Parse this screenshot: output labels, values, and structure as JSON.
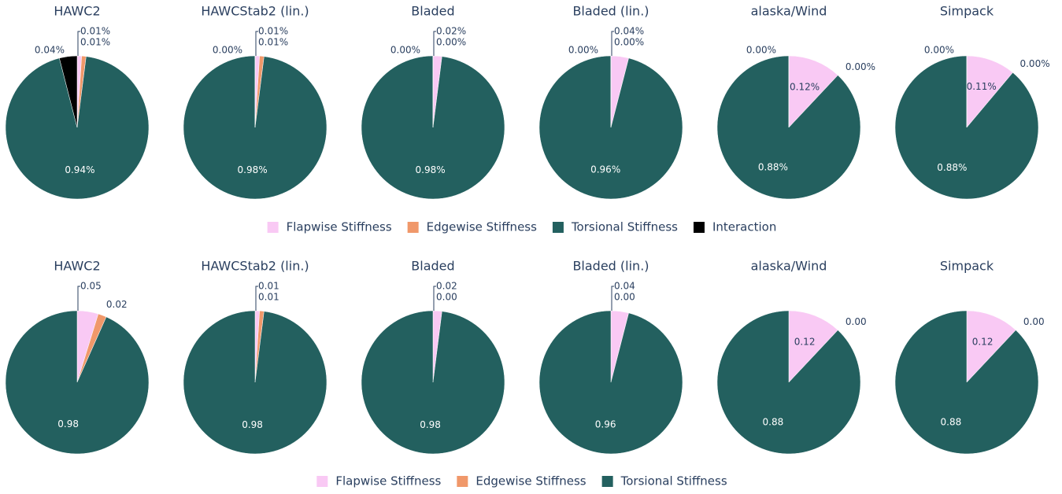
{
  "chart_data": [
    {
      "type": "pie",
      "title": "HAWC2",
      "categories": [
        "Flapwise Stiffness",
        "Edgewise Stiffness",
        "Torsional Stiffness",
        "Interaction"
      ],
      "colors": [
        "#f9c9f4",
        "#f0986a",
        "#23605f",
        "#000000"
      ],
      "values": [
        0.01,
        0.01,
        0.94,
        0.04
      ],
      "value_labels": [
        "0.01%",
        "0.01%",
        "0.94%",
        "0.04%"
      ]
    },
    {
      "type": "pie",
      "title": "HAWCStab2 (lin.)",
      "categories": [
        "Flapwise Stiffness",
        "Edgewise Stiffness",
        "Torsional Stiffness",
        "Interaction"
      ],
      "colors": [
        "#f9c9f4",
        "#f0986a",
        "#23605f",
        "#000000"
      ],
      "values": [
        0.01,
        0.01,
        0.98,
        0.0
      ],
      "value_labels": [
        "0.01%",
        "0.01%",
        "0.98%",
        "0.00%"
      ]
    },
    {
      "type": "pie",
      "title": "Bladed",
      "categories": [
        "Flapwise Stiffness",
        "Edgewise Stiffness",
        "Torsional Stiffness",
        "Interaction"
      ],
      "colors": [
        "#f9c9f4",
        "#f0986a",
        "#23605f",
        "#000000"
      ],
      "values": [
        0.02,
        0.0,
        0.98,
        0.0
      ],
      "value_labels": [
        "0.02%",
        "0.00%",
        "0.98%",
        "0.00%"
      ]
    },
    {
      "type": "pie",
      "title": "Bladed (lin.)",
      "categories": [
        "Flapwise Stiffness",
        "Edgewise Stiffness",
        "Torsional Stiffness",
        "Interaction"
      ],
      "colors": [
        "#f9c9f4",
        "#f0986a",
        "#23605f",
        "#000000"
      ],
      "values": [
        0.04,
        0.0,
        0.96,
        0.0
      ],
      "value_labels": [
        "0.04%",
        "0.00%",
        "0.96%",
        "0.00%"
      ]
    },
    {
      "type": "pie",
      "title": "alaska/Wind",
      "categories": [
        "Flapwise Stiffness",
        "Edgewise Stiffness",
        "Torsional Stiffness",
        "Interaction"
      ],
      "colors": [
        "#f9c9f4",
        "#f0986a",
        "#23605f",
        "#000000"
      ],
      "values": [
        0.12,
        0.0,
        0.88,
        0.0
      ],
      "value_labels": [
        "0.12%",
        "0.00%",
        "0.88%",
        "0.00%"
      ]
    },
    {
      "type": "pie",
      "title": "Simpack",
      "categories": [
        "Flapwise Stiffness",
        "Edgewise Stiffness",
        "Torsional Stiffness",
        "Interaction"
      ],
      "colors": [
        "#f9c9f4",
        "#f0986a",
        "#23605f",
        "#000000"
      ],
      "values": [
        0.11,
        0.0,
        0.88,
        0.0
      ],
      "value_labels": [
        "0.11%",
        "0.00%",
        "0.88%",
        "0.00%"
      ]
    },
    {
      "type": "pie",
      "title": "HAWC2",
      "categories": [
        "Flapwise Stiffness",
        "Edgewise Stiffness",
        "Torsional Stiffness"
      ],
      "colors": [
        "#f9c9f4",
        "#f0986a",
        "#23605f"
      ],
      "values": [
        0.05,
        0.02,
        0.98
      ],
      "value_labels": [
        "0.05",
        "0.02",
        "0.98"
      ]
    },
    {
      "type": "pie",
      "title": "HAWCStab2 (lin.)",
      "categories": [
        "Flapwise Stiffness",
        "Edgewise Stiffness",
        "Torsional Stiffness"
      ],
      "colors": [
        "#f9c9f4",
        "#f0986a",
        "#23605f"
      ],
      "values": [
        0.01,
        0.01,
        0.98
      ],
      "value_labels": [
        "0.01",
        "0.01",
        "0.98"
      ]
    },
    {
      "type": "pie",
      "title": "Bladed",
      "categories": [
        "Flapwise Stiffness",
        "Edgewise Stiffness",
        "Torsional Stiffness"
      ],
      "colors": [
        "#f9c9f4",
        "#f0986a",
        "#23605f"
      ],
      "values": [
        0.02,
        0.0,
        0.98
      ],
      "value_labels": [
        "0.02",
        "0.00",
        "0.98"
      ]
    },
    {
      "type": "pie",
      "title": "Bladed (lin.)",
      "categories": [
        "Flapwise Stiffness",
        "Edgewise Stiffness",
        "Torsional Stiffness"
      ],
      "colors": [
        "#f9c9f4",
        "#f0986a",
        "#23605f"
      ],
      "values": [
        0.04,
        0.0,
        0.96
      ],
      "value_labels": [
        "0.04",
        "0.00",
        "0.96"
      ]
    },
    {
      "type": "pie",
      "title": "alaska/Wind",
      "categories": [
        "Flapwise Stiffness",
        "Edgewise Stiffness",
        "Torsional Stiffness"
      ],
      "colors": [
        "#f9c9f4",
        "#f0986a",
        "#23605f"
      ],
      "values": [
        0.12,
        0.0,
        0.88
      ],
      "value_labels": [
        "0.12",
        "0.00",
        "0.88"
      ]
    },
    {
      "type": "pie",
      "title": "Simpack",
      "categories": [
        "Flapwise Stiffness",
        "Edgewise Stiffness",
        "Torsional Stiffness"
      ],
      "colors": [
        "#f9c9f4",
        "#f0986a",
        "#23605f"
      ],
      "values": [
        0.12,
        0.0,
        0.88
      ],
      "value_labels": [
        "0.12",
        "0.00",
        "0.88"
      ]
    }
  ]
}
